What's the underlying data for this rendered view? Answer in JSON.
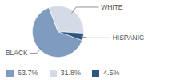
{
  "chart_data": {
    "type": "pie",
    "categories": [
      "BLACK",
      "WHITE",
      "HISPANIC"
    ],
    "values": [
      63.7,
      31.8,
      4.5
    ],
    "value_labels": [
      "63.7%",
      "31.8%",
      "4.5%"
    ],
    "colors": [
      "#7f9bbd",
      "#d5dbe6",
      "#2e557f"
    ],
    "legend": "bottom"
  }
}
